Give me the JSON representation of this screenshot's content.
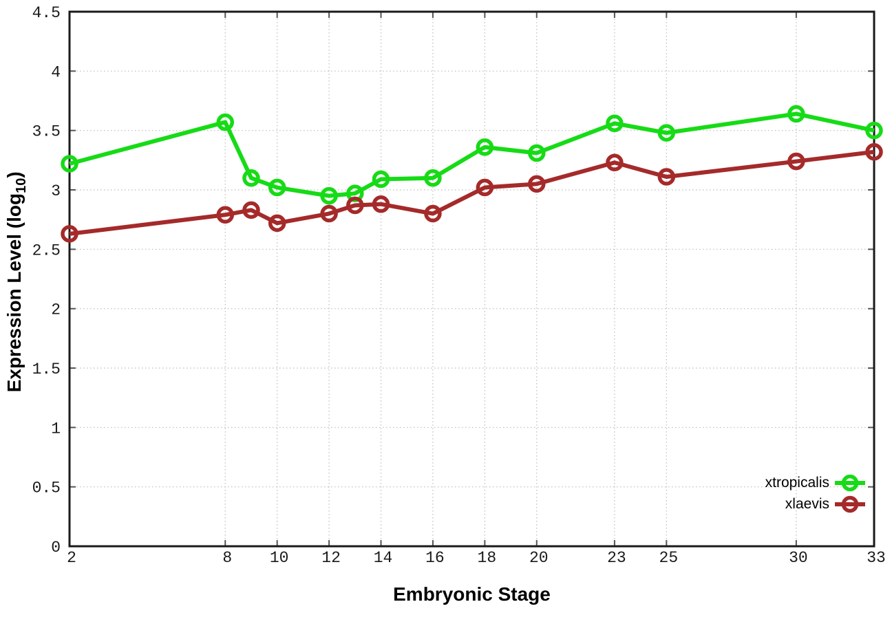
{
  "chart_data": {
    "type": "line",
    "title": "",
    "xlabel": "Embryonic Stage",
    "ylabel": "Expression Level (log10)",
    "ylabel_main": "Expression Level (log",
    "ylabel_sub": "10",
    "ylabel_close": ")",
    "xlim": [
      2,
      33
    ],
    "ylim": [
      0,
      4.5
    ],
    "grid": true,
    "legend_position": "inside bottom-right",
    "marker": "open-circle",
    "x_tick_labels": [
      "2",
      "8",
      "10",
      "12",
      "14",
      "16",
      "18",
      "20",
      "23",
      "25",
      "30",
      "33"
    ],
    "x_tick_values": [
      2,
      8,
      10,
      12,
      14,
      16,
      18,
      20,
      23,
      25,
      30,
      33
    ],
    "y_tick_labels": [
      "0",
      "0.5",
      "1",
      "1.5",
      "2",
      "2.5",
      "3",
      "3.5",
      "4",
      "4.5"
    ],
    "y_tick_values": [
      0,
      0.5,
      1,
      1.5,
      2,
      2.5,
      3,
      3.5,
      4,
      4.5
    ],
    "x": [
      2,
      8,
      9,
      10,
      12,
      13,
      14,
      16,
      18,
      20,
      23,
      25,
      30,
      33
    ],
    "series": [
      {
        "name": "xtropicalis",
        "color": "#16db16",
        "values": [
          3.22,
          3.57,
          3.1,
          3.02,
          2.95,
          2.97,
          3.09,
          3.1,
          3.36,
          3.31,
          3.56,
          3.48,
          3.64,
          3.5
        ]
      },
      {
        "name": "xlaevis",
        "color": "#a52a2a",
        "values": [
          2.63,
          2.79,
          2.83,
          2.72,
          2.8,
          2.87,
          2.88,
          2.8,
          3.02,
          3.05,
          3.23,
          3.11,
          3.24,
          3.32
        ]
      }
    ],
    "colors": {
      "border": "#1a1a1a",
      "grid": "#bbbbbb",
      "tick": "#555555",
      "tick_text": "#1a1a1a"
    }
  }
}
